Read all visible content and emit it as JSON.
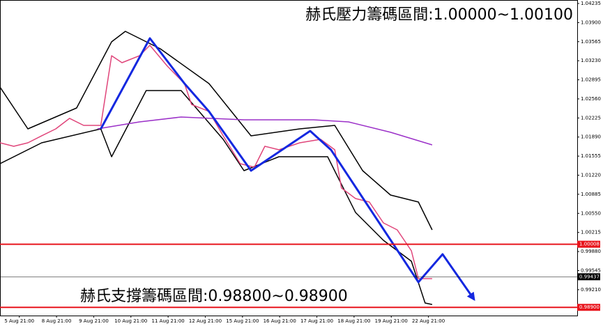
{
  "chart_data": {
    "type": "line",
    "annotations": [
      "赫氏壓力籌碼區間:1.00000~1.00100",
      "赫氏支撐籌碼區間:0.98800~0.98900"
    ],
    "xlim": [
      -0.52,
      15.0
    ],
    "ylim": [
      0.98756,
      1.04296
    ],
    "xticks": [
      {
        "value": 0,
        "label": "5 Aug 21:00"
      },
      {
        "value": 1,
        "label": "8 Aug 21:00"
      },
      {
        "value": 2,
        "label": "9 Aug 21:00"
      },
      {
        "value": 3,
        "label": "10 Aug 21:00"
      },
      {
        "value": 4,
        "label": "11 Aug 21:00"
      },
      {
        "value": 5,
        "label": "12 Aug 21:00"
      },
      {
        "value": 6,
        "label": "15 Aug 21:00"
      },
      {
        "value": 7,
        "label": "16 Aug 21:00"
      },
      {
        "value": 8,
        "label": "17 Aug 21:00"
      },
      {
        "value": 9,
        "label": "18 Aug 21:00"
      },
      {
        "value": 10,
        "label": "19 Aug 21:00"
      },
      {
        "value": 11,
        "label": "22 Aug 21:00"
      }
    ],
    "yticks": [
      {
        "value": 1.04235,
        "label": "1.04235"
      },
      {
        "value": 1.039,
        "label": "1.03900"
      },
      {
        "value": 1.03565,
        "label": "1.03565"
      },
      {
        "value": 1.0323,
        "label": "1.03230"
      },
      {
        "value": 1.02895,
        "label": "1.02895"
      },
      {
        "value": 1.0256,
        "label": "1.02560"
      },
      {
        "value": 1.02225,
        "label": "1.02225"
      },
      {
        "value": 1.0189,
        "label": "1.01890"
      },
      {
        "value": 1.01555,
        "label": "1.01555"
      },
      {
        "value": 1.0122,
        "label": "1.01220"
      },
      {
        "value": 1.00885,
        "label": "1.00885"
      },
      {
        "value": 1.0055,
        "label": "1.00550"
      },
      {
        "value": 1.00215,
        "label": "1.00215"
      },
      {
        "value": 0.9988,
        "label": "0.99880"
      },
      {
        "value": 0.99545,
        "label": "0.99545"
      },
      {
        "value": 0.9921,
        "label": "0.99210"
      }
    ],
    "levels": [
      {
        "value": 1.00008,
        "label": "1.00008",
        "color": "#e8141c"
      },
      {
        "value": 0.99437,
        "label": "0.99437",
        "color": "#000000"
      },
      {
        "value": 0.989,
        "label": "0.98900",
        "color": "#e8141c"
      }
    ],
    "series": [
      {
        "color": "#000000",
        "x": [
          -0.52,
          0.23,
          1.54,
          2.48,
          2.85,
          3.79,
          5.1,
          6.23,
          7.54,
          8.48,
          9.23,
          9.98,
          10.73,
          11.1
        ],
        "values": [
          1.02767,
          1.02033,
          1.024,
          1.03562,
          1.03746,
          1.0344,
          1.02828,
          1.01911,
          1.02033,
          1.02095,
          1.013,
          1.00872,
          1.00749,
          1.0026
        ]
      },
      {
        "color": "#000000",
        "x": [
          -0.52,
          0.6,
          2.19,
          2.48,
          3.41,
          4.35,
          5.48,
          6.04,
          6.98,
          8.29,
          9.04,
          9.79,
          10.54,
          10.91,
          11.1
        ],
        "values": [
          1.01422,
          1.01789,
          1.02033,
          1.01544,
          1.02706,
          1.02706,
          1.0185,
          1.013,
          1.01544,
          1.01544,
          1.00566,
          1.00077,
          0.9971,
          0.98976,
          0.98951
        ]
      },
      {
        "color": "#9b30c8",
        "x": [
          2.1,
          3.23,
          4.35,
          6.04,
          7.91,
          8.85,
          9.98,
          11.1
        ],
        "values": [
          1.02034,
          1.02156,
          1.02242,
          1.02193,
          1.02193,
          1.02156,
          1.01973,
          1.01752
        ]
      },
      {
        "color": "#e0457a",
        "x": [
          -0.52,
          -0.15,
          0.23,
          0.6,
          0.98,
          1.35,
          1.73,
          2.19,
          2.48,
          2.76,
          3.23,
          3.51,
          3.98,
          4.44,
          4.63,
          5.1,
          5.48,
          5.94,
          6.32,
          6.6,
          6.98,
          7.54,
          8.1,
          8.48,
          8.66,
          9.04,
          9.41,
          9.79,
          10.16,
          10.54,
          10.73,
          11.1
        ],
        "values": [
          1.01789,
          1.01728,
          1.01789,
          1.01912,
          1.02034,
          1.02218,
          1.02095,
          1.02095,
          1.03318,
          1.03195,
          1.03318,
          1.03501,
          1.03134,
          1.02829,
          1.02462,
          1.0234,
          1.01912,
          1.01422,
          1.01361,
          1.01728,
          1.01667,
          1.01789,
          1.0185,
          1.01667,
          1.00995,
          1.00811,
          1.00749,
          1.00383,
          1.0026,
          0.99893,
          0.99404,
          0.99404
        ]
      },
      {
        "color": "#1428e0",
        "arrow": true,
        "x": [
          2.19,
          3.51,
          4.44,
          5.1,
          6.23,
          7.82,
          8.38,
          10.73,
          11.38,
          12.23
        ],
        "values": [
          1.02033,
          1.03623,
          1.0283,
          1.02339,
          1.013,
          1.01997,
          1.01666,
          0.99343,
          0.99832,
          0.99037
        ]
      }
    ]
  }
}
